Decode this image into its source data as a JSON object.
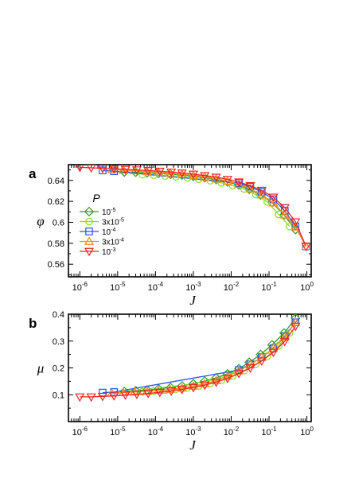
{
  "panels": [
    {
      "letter": "a",
      "ylabel": "φ",
      "xlabel": "J",
      "ylim": [
        0.548,
        0.655
      ],
      "yticks": [
        {
          "value": 0.56,
          "label": "0.56"
        },
        {
          "value": 0.58,
          "label": "0.58"
        },
        {
          "value": 0.6,
          "label": "0.6"
        },
        {
          "value": 0.62,
          "label": "0.62"
        },
        {
          "value": 0.64,
          "label": "0.64"
        }
      ]
    },
    {
      "letter": "b",
      "ylabel": "μ",
      "xlabel": "J",
      "ylim": [
        0.0,
        0.4
      ],
      "yticks": [
        {
          "value": 0.1,
          "label": "0.1"
        },
        {
          "value": 0.2,
          "label": "0.2"
        },
        {
          "value": 0.3,
          "label": "0.3"
        },
        {
          "value": 0.4,
          "label": "0.4"
        }
      ]
    }
  ],
  "xaxis": {
    "scale": "log",
    "xlim": [
      5e-07,
      1.3
    ],
    "ticks": [
      {
        "value": 1e-06,
        "base": "10",
        "exp": "-6"
      },
      {
        "value": 1e-05,
        "base": "10",
        "exp": "-5"
      },
      {
        "value": 0.0001,
        "base": "10",
        "exp": "-4"
      },
      {
        "value": 0.001,
        "base": "10",
        "exp": "-3"
      },
      {
        "value": 0.01,
        "base": "10",
        "exp": "-2"
      },
      {
        "value": 0.1,
        "base": "10",
        "exp": "-1"
      },
      {
        "value": 1,
        "base": "10",
        "exp": "0"
      }
    ]
  },
  "legend": {
    "title": "P",
    "placement": "left, panel a",
    "entries": [
      {
        "coef": "",
        "base": "10",
        "exp": "-5"
      },
      {
        "coef": "3x",
        "base": "10",
        "exp": "-5"
      },
      {
        "coef": "",
        "base": "10",
        "exp": "-4"
      },
      {
        "coef": "3x",
        "base": "10",
        "exp": "-4"
      },
      {
        "coef": "",
        "base": "10",
        "exp": "-3"
      }
    ]
  },
  "chart_data": [
    {
      "type": "line",
      "panel": "a",
      "xlabel": "J",
      "ylabel": "φ",
      "xscale": "log",
      "series": [
        {
          "name": "10^-5",
          "marker": "diamond",
          "color": "#22a022",
          "x": [
            1.5e-05,
            3e-05,
            6e-05,
            0.00012,
            0.00025,
            0.0005,
            0.001,
            0.002,
            0.004,
            0.008,
            0.016,
            0.03,
            0.06,
            0.12,
            0.25,
            0.5
          ],
          "y": [
            0.648,
            0.6478,
            0.6472,
            0.6466,
            0.6458,
            0.645,
            0.6438,
            0.6425,
            0.6408,
            0.6385,
            0.6355,
            0.6315,
            0.626,
            0.619,
            0.607,
            0.593
          ]
        },
        {
          "name": "3x10^-5",
          "marker": "circle",
          "color": "#88dd22",
          "x": [
            4.5e-05,
            9e-05,
            0.00018,
            0.00035,
            0.0007,
            0.0014,
            0.0028,
            0.0055,
            0.011,
            0.022,
            0.045,
            0.09,
            0.18,
            0.35
          ],
          "y": [
            0.6455,
            0.645,
            0.6442,
            0.6434,
            0.6424,
            0.6412,
            0.6397,
            0.6377,
            0.635,
            0.6318,
            0.6265,
            0.6195,
            0.6075,
            0.596
          ]
        },
        {
          "name": "10^-4",
          "marker": "square",
          "color": "#2255ee",
          "x": [
            4e-06,
            8e-06,
            0.016,
            0.032,
            0.064,
            0.13,
            0.26,
            0.5,
            0.95
          ],
          "y": [
            0.6495,
            0.6488,
            0.6375,
            0.634,
            0.629,
            0.622,
            0.611,
            0.596,
            0.577
          ]
        },
        {
          "name": "3x10^-4",
          "marker": "triangle-up",
          "color": "#ff8822",
          "x": [
            7e-06,
            1.4e-05,
            2.8e-05,
            6e-05,
            0.00012,
            0.00024,
            0.0005,
            0.001,
            0.002,
            0.004,
            0.008,
            0.016,
            0.032,
            0.064,
            0.13,
            0.26,
            0.5,
            0.95
          ],
          "y": [
            0.6503,
            0.6498,
            0.6492,
            0.6485,
            0.6477,
            0.6468,
            0.6458,
            0.6446,
            0.6432,
            0.6414,
            0.6392,
            0.6362,
            0.632,
            0.6262,
            0.6185,
            0.607,
            0.5955,
            0.577
          ]
        },
        {
          "name": "10^-3",
          "marker": "triangle-down",
          "color": "#ee2222",
          "x": [
            1e-06,
            2e-06,
            4e-06,
            8e-06,
            1.6e-05,
            3.2e-05,
            6.4e-05,
            0.00013,
            0.00026,
            0.0005,
            0.001,
            0.002,
            0.004,
            0.008,
            0.016,
            0.032,
            0.064,
            0.13,
            0.26,
            0.5,
            0.95
          ],
          "y": [
            0.6525,
            0.652,
            0.6515,
            0.651,
            0.6505,
            0.65,
            0.6494,
            0.6487,
            0.6479,
            0.647,
            0.6459,
            0.6446,
            0.643,
            0.641,
            0.6385,
            0.635,
            0.6305,
            0.624,
            0.614,
            0.6005,
            0.577
          ]
        }
      ]
    },
    {
      "type": "line",
      "panel": "b",
      "xlabel": "J",
      "ylabel": "μ",
      "xscale": "log",
      "series": [
        {
          "name": "10^-5",
          "marker": "diamond",
          "color": "#22a022",
          "x": [
            1.5e-05,
            3e-05,
            6e-05,
            0.00012,
            0.00025,
            0.0005,
            0.001,
            0.002,
            0.004,
            0.008,
            0.016,
            0.03,
            0.06,
            0.12,
            0.25,
            0.5
          ],
          "y": [
            0.112,
            0.115,
            0.118,
            0.122,
            0.127,
            0.133,
            0.141,
            0.151,
            0.163,
            0.178,
            0.197,
            0.221,
            0.25,
            0.286,
            0.33,
            0.385
          ]
        },
        {
          "name": "3x10^-5",
          "marker": "circle",
          "color": "#88dd22",
          "x": [
            4.5e-05,
            9e-05,
            0.00018,
            0.00035,
            0.0007,
            0.0014,
            0.0028,
            0.0055,
            0.011,
            0.022,
            0.045,
            0.09,
            0.18,
            0.35
          ],
          "y": [
            0.111,
            0.114,
            0.117,
            0.121,
            0.126,
            0.133,
            0.142,
            0.154,
            0.17,
            0.19,
            0.214,
            0.243,
            0.282,
            0.33
          ]
        },
        {
          "name": "10^-4",
          "marker": "square",
          "color": "#2255ee",
          "x": [
            4e-06,
            8e-06,
            0.016,
            0.032,
            0.064,
            0.13,
            0.26,
            0.5
          ],
          "y": [
            0.108,
            0.11,
            0.192,
            0.213,
            0.24,
            0.273,
            0.318,
            0.37
          ]
        },
        {
          "name": "3x10^-4",
          "marker": "triangle-up",
          "color": "#ff8822",
          "x": [
            7e-06,
            1.4e-05,
            2.8e-05,
            6e-05,
            0.00012,
            0.00024,
            0.0005,
            0.001,
            0.002,
            0.004,
            0.008,
            0.016,
            0.032,
            0.064,
            0.13,
            0.26,
            0.5
          ],
          "y": [
            0.106,
            0.108,
            0.11,
            0.113,
            0.116,
            0.12,
            0.125,
            0.132,
            0.141,
            0.153,
            0.169,
            0.189,
            0.212,
            0.24,
            0.273,
            0.315,
            0.37
          ]
        },
        {
          "name": "10^-3",
          "marker": "triangle-down",
          "color": "#ee2222",
          "x": [
            1e-06,
            2e-06,
            4e-06,
            8e-06,
            1.6e-05,
            3.2e-05,
            6.4e-05,
            0.00013,
            0.00026,
            0.0005,
            0.001,
            0.002,
            0.004,
            0.008,
            0.016,
            0.032,
            0.064,
            0.13,
            0.26,
            0.5
          ],
          "y": [
            0.092,
            0.092,
            0.094,
            0.096,
            0.099,
            0.102,
            0.105,
            0.109,
            0.114,
            0.12,
            0.127,
            0.136,
            0.147,
            0.161,
            0.179,
            0.2,
            0.226,
            0.258,
            0.299,
            0.355
          ]
        }
      ]
    }
  ]
}
